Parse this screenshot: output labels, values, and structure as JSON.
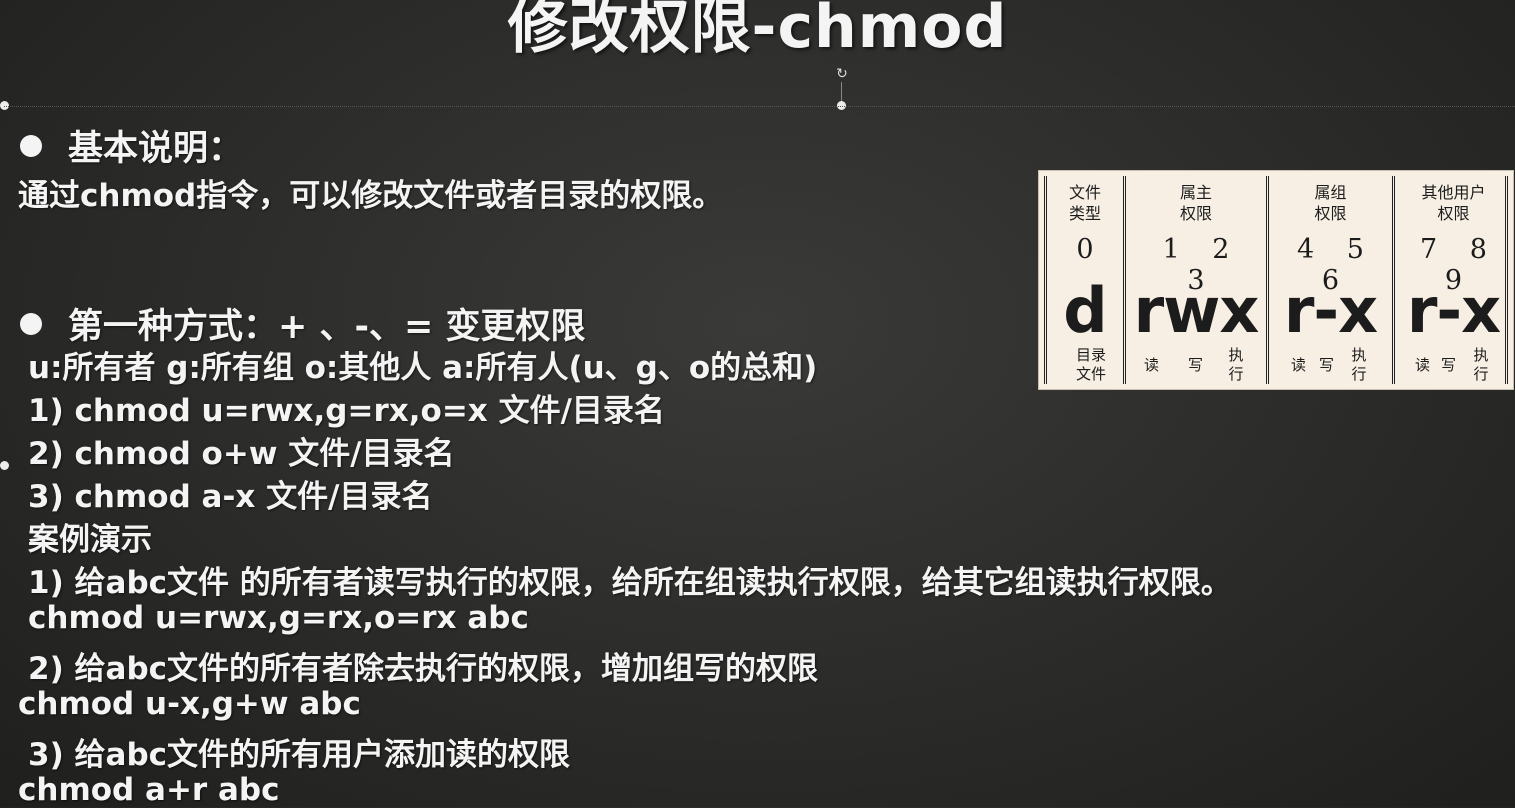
{
  "slide": {
    "title": "修改权限-chmod",
    "sections": {
      "basic": {
        "heading": "基本说明：",
        "text": "通过chmod指令，可以修改文件或者目录的权限。"
      },
      "method1": {
        "heading": "第一种方式：+ 、-、= 变更权限",
        "legend": "u:所有者  g:所有组  o:其他人  a:所有人(u、g、o的总和)",
        "examples": [
          "1) chmod   u=rwx,g=rx,o=x   文件/目录名",
          "2) chmod   o+w    文件/目录名",
          "3) chmod   a-x    文件/目录名"
        ],
        "case_title": "案例演示",
        "cases": [
          {
            "desc": "1) 给abc文件 的所有者读写执行的权限，给所在组读执行权限，给其它组读执行权限。",
            "cmd": "chmod u=rwx,g=rx,o=rx abc"
          },
          {
            "desc": "2) 给abc文件的所有者除去执行的权限，增加组写的权限",
            "cmd": "chmod u-x,g+w abc"
          },
          {
            "desc": "3) 给abc文件的所有用户添加读的权限",
            "cmd": "chmod a+r abc"
          }
        ]
      }
    },
    "diagram": {
      "columns": [
        {
          "head1": "文件",
          "head2": "类型",
          "nums": "0",
          "sym": "d",
          "foot": [
            "目录文件"
          ]
        },
        {
          "head1": "属主",
          "head2": "权限",
          "nums": "1 2 3",
          "sym": "rwx",
          "foot": [
            "读",
            "写",
            "执行"
          ]
        },
        {
          "head1": "属组",
          "head2": "权限",
          "nums": "4 5 6",
          "sym": "r-x",
          "foot": [
            "读",
            "写",
            "执行"
          ]
        },
        {
          "head1": "其他用户",
          "head2": "权限",
          "nums": "7 8 9",
          "sym": "r-x",
          "foot": [
            "读",
            "写",
            "执行"
          ]
        }
      ]
    }
  }
}
